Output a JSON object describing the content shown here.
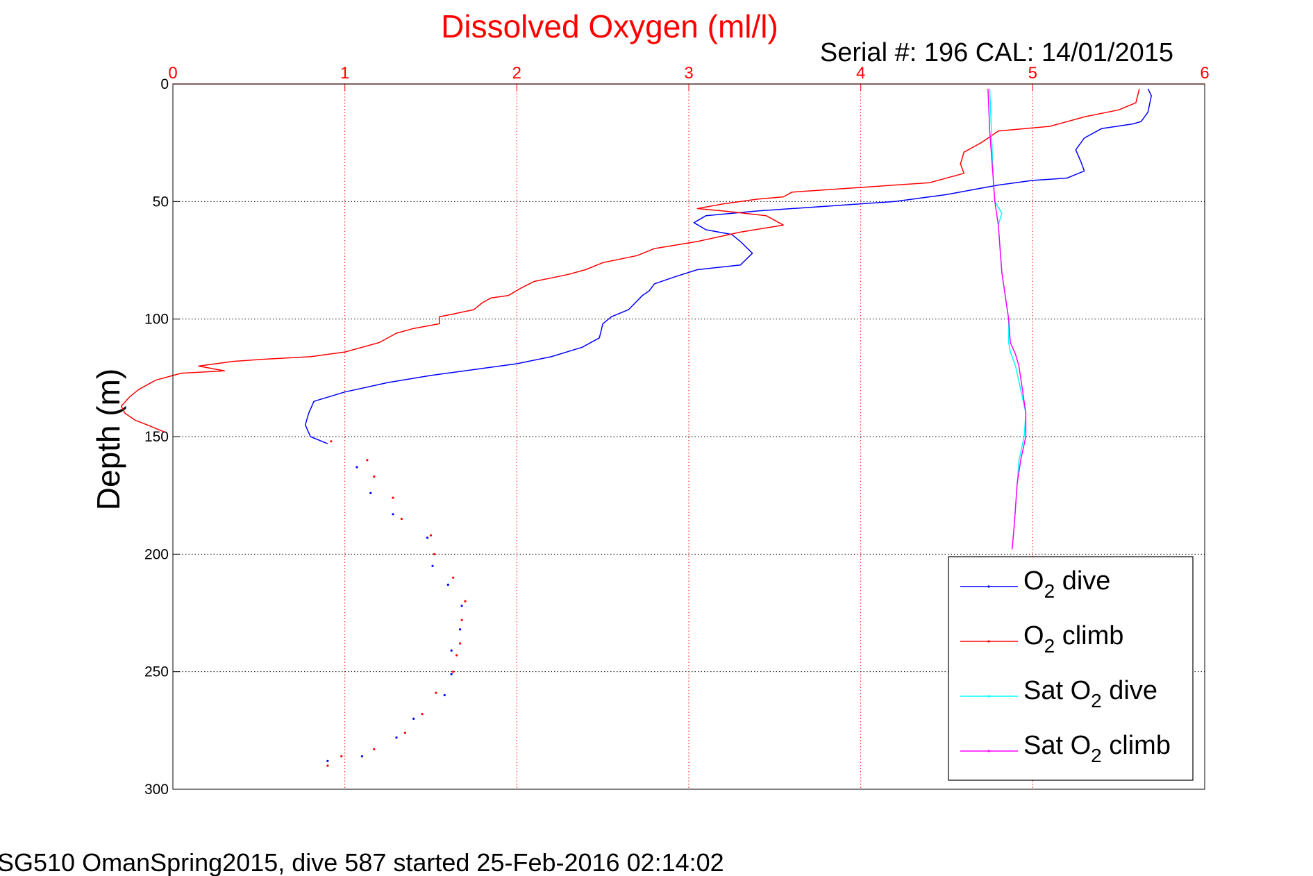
{
  "chart_data": {
    "type": "line",
    "title": "Dissolved Oxygen (ml/l)",
    "subtitle": "Serial #: 196  CAL: 14/01/2015",
    "xlabel": "",
    "ylabel": "Depth (m)",
    "footer": "SG510 OmanSpring2015, dive 587 started 25-Feb-2016 02:14:02",
    "xlim": [
      0,
      6
    ],
    "ylim": [
      0,
      300
    ],
    "y_reversed": true,
    "x_axis_position": "top",
    "grid": true,
    "x_ticks": [
      "0",
      "1",
      "2",
      "3",
      "4",
      "5",
      "6"
    ],
    "y_ticks": [
      "0",
      "50",
      "100",
      "150",
      "200",
      "250",
      "300"
    ],
    "legend_position": "bottom-right",
    "colors": {
      "o2_dive": "#0000ff",
      "o2_climb": "#ff0000",
      "sat_dive": "#00ffff",
      "sat_climb": "#ff00ff",
      "title": "#ff0000",
      "grid_x": "#ff0000",
      "grid_y": "#000000"
    },
    "legend": [
      {
        "main": "O",
        "sub": "2",
        "tail": " dive",
        "color": "#0000ff"
      },
      {
        "main": "O",
        "sub": "2",
        "tail": " climb",
        "color": "#ff0000"
      },
      {
        "main": "Sat O",
        "sub": "2",
        "tail": " dive",
        "color": "#00ffff"
      },
      {
        "main": "Sat O",
        "sub": "2",
        "tail": " climb",
        "color": "#ff00ff"
      }
    ],
    "series": [
      {
        "key": "o2_dive",
        "color": "#0000ff",
        "line": [
          [
            5.67,
            2
          ],
          [
            5.69,
            5
          ],
          [
            5.67,
            12
          ],
          [
            5.63,
            16
          ],
          [
            5.58,
            17
          ],
          [
            5.4,
            19
          ],
          [
            5.3,
            23
          ],
          [
            5.25,
            28
          ],
          [
            5.28,
            33
          ],
          [
            5.3,
            37
          ],
          [
            5.2,
            40
          ],
          [
            5.0,
            41
          ],
          [
            4.8,
            43
          ],
          [
            4.5,
            47
          ],
          [
            4.2,
            50
          ],
          [
            3.8,
            52
          ],
          [
            3.4,
            54
          ],
          [
            3.1,
            56
          ],
          [
            3.03,
            59
          ],
          [
            3.1,
            62
          ],
          [
            3.25,
            64
          ],
          [
            3.3,
            67
          ],
          [
            3.37,
            72
          ],
          [
            3.3,
            77
          ],
          [
            3.05,
            79
          ],
          [
            2.92,
            82
          ],
          [
            2.8,
            85
          ],
          [
            2.77,
            88
          ],
          [
            2.73,
            90
          ],
          [
            2.65,
            96
          ],
          [
            2.55,
            99
          ],
          [
            2.5,
            102
          ],
          [
            2.48,
            108
          ],
          [
            2.38,
            112
          ],
          [
            2.2,
            116
          ],
          [
            2.0,
            119
          ],
          [
            1.8,
            121
          ],
          [
            1.5,
            124
          ],
          [
            1.25,
            127
          ],
          [
            1.0,
            131
          ],
          [
            0.82,
            135
          ],
          [
            0.79,
            140
          ],
          [
            0.77,
            145
          ],
          [
            0.8,
            150
          ],
          [
            0.9,
            153
          ]
        ],
        "dots": [
          [
            1.07,
            163
          ],
          [
            1.15,
            174
          ],
          [
            1.28,
            183
          ],
          [
            1.48,
            193
          ],
          [
            1.51,
            205
          ],
          [
            1.6,
            213
          ],
          [
            1.68,
            222
          ],
          [
            1.67,
            232
          ],
          [
            1.62,
            241
          ],
          [
            1.62,
            251
          ],
          [
            1.58,
            260
          ],
          [
            1.4,
            270
          ],
          [
            1.3,
            278
          ],
          [
            1.1,
            286
          ],
          [
            0.9,
            288
          ]
        ]
      },
      {
        "key": "o2_climb",
        "color": "#ff0000",
        "line": [
          [
            5.62,
            2
          ],
          [
            5.6,
            8
          ],
          [
            5.5,
            11
          ],
          [
            5.3,
            14
          ],
          [
            5.1,
            18
          ],
          [
            4.8,
            20
          ],
          [
            4.7,
            25
          ],
          [
            4.6,
            29
          ],
          [
            4.58,
            34
          ],
          [
            4.6,
            38
          ],
          [
            4.4,
            42
          ],
          [
            4.0,
            44
          ],
          [
            3.6,
            46
          ],
          [
            3.55,
            48
          ],
          [
            3.4,
            49
          ],
          [
            3.2,
            51
          ],
          [
            3.05,
            53
          ],
          [
            3.2,
            54
          ],
          [
            3.45,
            56
          ],
          [
            3.55,
            60
          ],
          [
            3.3,
            63
          ],
          [
            3.05,
            67
          ],
          [
            2.8,
            70
          ],
          [
            2.7,
            73
          ],
          [
            2.5,
            76
          ],
          [
            2.4,
            79
          ],
          [
            2.3,
            81
          ],
          [
            2.1,
            84
          ],
          [
            2.02,
            87
          ],
          [
            1.95,
            90
          ],
          [
            1.85,
            91
          ],
          [
            1.8,
            93
          ],
          [
            1.75,
            96
          ],
          [
            1.62,
            98
          ],
          [
            1.55,
            99
          ],
          [
            1.55,
            102
          ],
          [
            1.4,
            104
          ],
          [
            1.3,
            106
          ],
          [
            1.2,
            110
          ],
          [
            1.0,
            114
          ],
          [
            0.8,
            116
          ],
          [
            0.55,
            117
          ],
          [
            0.35,
            118
          ],
          [
            0.15,
            120
          ],
          [
            0.3,
            122
          ],
          [
            0.05,
            123
          ],
          [
            -0.1,
            126
          ],
          [
            -0.2,
            130
          ],
          [
            -0.25,
            133
          ],
          [
            -0.3,
            137
          ],
          [
            -0.28,
            140
          ],
          [
            -0.22,
            143
          ],
          [
            -0.15,
            145
          ],
          [
            -0.05,
            148
          ]
        ],
        "dots": [
          [
            0.92,
            152
          ],
          [
            1.13,
            160
          ],
          [
            1.17,
            167
          ],
          [
            1.28,
            176
          ],
          [
            1.33,
            185
          ],
          [
            1.5,
            192
          ],
          [
            1.52,
            200
          ],
          [
            1.63,
            210
          ],
          [
            1.7,
            220
          ],
          [
            1.68,
            228
          ],
          [
            1.67,
            238
          ],
          [
            1.65,
            243
          ],
          [
            1.63,
            250
          ],
          [
            1.53,
            259
          ],
          [
            1.45,
            268
          ],
          [
            1.35,
            276
          ],
          [
            1.17,
            283
          ],
          [
            0.98,
            286
          ],
          [
            0.9,
            290
          ]
        ]
      },
      {
        "key": "sat_dive",
        "color": "#00ffff",
        "line": [
          [
            4.75,
            2
          ],
          [
            4.76,
            20
          ],
          [
            4.77,
            40
          ],
          [
            4.78,
            50
          ],
          [
            4.82,
            55
          ],
          [
            4.8,
            60
          ],
          [
            4.81,
            70
          ],
          [
            4.82,
            80
          ],
          [
            4.84,
            90
          ],
          [
            4.86,
            100
          ],
          [
            4.86,
            110
          ],
          [
            4.87,
            114
          ],
          [
            4.9,
            120
          ],
          [
            4.93,
            130
          ],
          [
            4.96,
            140
          ],
          [
            4.95,
            150
          ],
          [
            4.92,
            160
          ],
          [
            4.91,
            170
          ],
          [
            4.9,
            180
          ],
          [
            4.89,
            190
          ],
          [
            4.88,
            198
          ]
        ]
      },
      {
        "key": "sat_climb",
        "color": "#ff00ff",
        "line": [
          [
            4.74,
            2
          ],
          [
            4.75,
            20
          ],
          [
            4.77,
            40
          ],
          [
            4.78,
            50
          ],
          [
            4.8,
            60
          ],
          [
            4.81,
            70
          ],
          [
            4.82,
            80
          ],
          [
            4.84,
            90
          ],
          [
            4.86,
            100
          ],
          [
            4.87,
            110
          ],
          [
            4.9,
            115
          ],
          [
            4.92,
            120
          ],
          [
            4.94,
            130
          ],
          [
            4.96,
            140
          ],
          [
            4.96,
            150
          ],
          [
            4.93,
            160
          ],
          [
            4.91,
            170
          ],
          [
            4.9,
            180
          ],
          [
            4.89,
            190
          ],
          [
            4.88,
            198
          ]
        ]
      }
    ]
  }
}
